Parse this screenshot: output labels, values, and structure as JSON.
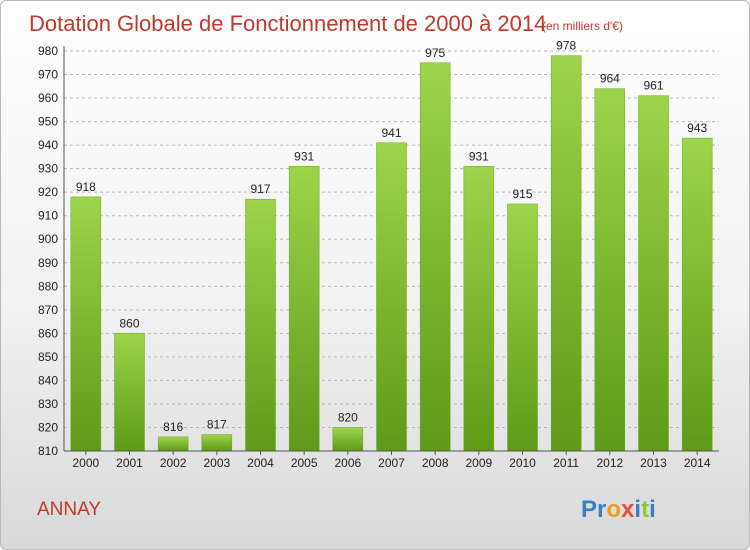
{
  "chart_data": {
    "type": "bar",
    "title": "Dotation Globale de Fonctionnement de 2000 à 2014",
    "subtitle": "(en milliers d'€)",
    "categories": [
      "2000",
      "2001",
      "2002",
      "2003",
      "2004",
      "2005",
      "2006",
      "2007",
      "2008",
      "2009",
      "2010",
      "2011",
      "2012",
      "2013",
      "2014"
    ],
    "values": [
      918,
      860,
      816,
      817,
      917,
      931,
      820,
      941,
      975,
      931,
      915,
      978,
      964,
      961,
      943
    ],
    "ylim": [
      810,
      980
    ],
    "yticks": [
      810,
      820,
      830,
      840,
      850,
      860,
      870,
      880,
      890,
      900,
      910,
      920,
      930,
      940,
      950,
      960,
      970,
      980
    ],
    "grid": true,
    "bar_color": "#7cbb2a"
  },
  "footer": {
    "commune": "ANNAY",
    "logo_letters": [
      "P",
      "r",
      "o",
      "x",
      "i",
      "t",
      "i"
    ]
  },
  "colors": {
    "title": "#c0392b",
    "logo": [
      "#3a7fc4",
      "#3a7fc4",
      "#f39c12",
      "#e74c3c",
      "#3a7fc4",
      "#8cc63f",
      "#3a7fc4"
    ]
  }
}
